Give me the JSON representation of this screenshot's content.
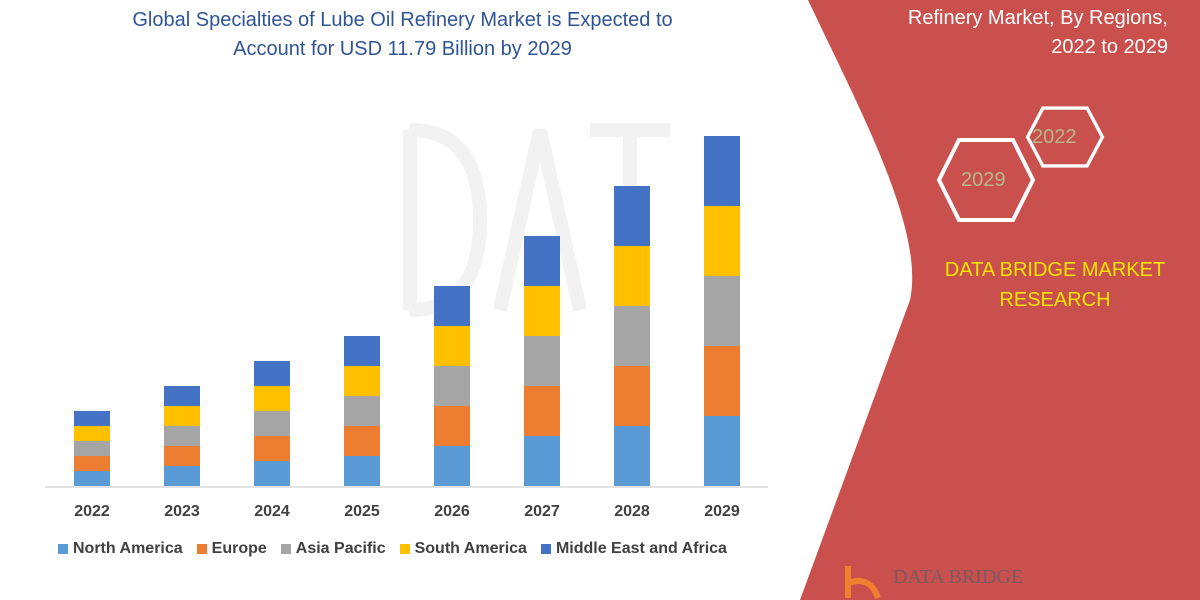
{
  "title": {
    "line1": "Global Specialties of Lube Oil Refinery Market is Expected to",
    "line2": "Account for USD 11.79 Billion by 2029"
  },
  "side_panel": {
    "title_line1": "Refinery Market, By Regions,",
    "title_line2": "2022 to 2029",
    "hex_labels": [
      "2022",
      "2029"
    ],
    "brand_line1": "DATA BRIDGE MARKET",
    "brand_line2": "RESEARCH",
    "logo_text": "DATA BRIDGE",
    "panel_color": "#c9504c"
  },
  "chart_data": {
    "type": "bar",
    "stacked": true,
    "categories": [
      "2022",
      "2023",
      "2024",
      "2025",
      "2026",
      "2027",
      "2028",
      "2029"
    ],
    "series": [
      {
        "name": "North America",
        "color": "#5b9bd5",
        "values": [
          1.5,
          2,
          2.5,
          3,
          4,
          5,
          6,
          7
        ]
      },
      {
        "name": "Europe",
        "color": "#ed7d31",
        "values": [
          1.5,
          2,
          2.5,
          3,
          4,
          5,
          6,
          7
        ]
      },
      {
        "name": "Asia Pacific",
        "color": "#a5a5a5",
        "values": [
          1.5,
          2,
          2.5,
          3,
          4,
          5,
          6,
          7
        ]
      },
      {
        "name": "South America",
        "color": "#ffc000",
        "values": [
          1.5,
          2,
          2.5,
          3,
          4,
          5,
          6,
          7
        ]
      },
      {
        "name": "Middle East and Africa",
        "color": "#4472c4",
        "values": [
          1.5,
          2,
          2.5,
          3,
          4,
          5,
          6,
          7
        ]
      }
    ],
    "legend_position": "bottom",
    "grid": false,
    "y_axis_shown": false
  }
}
